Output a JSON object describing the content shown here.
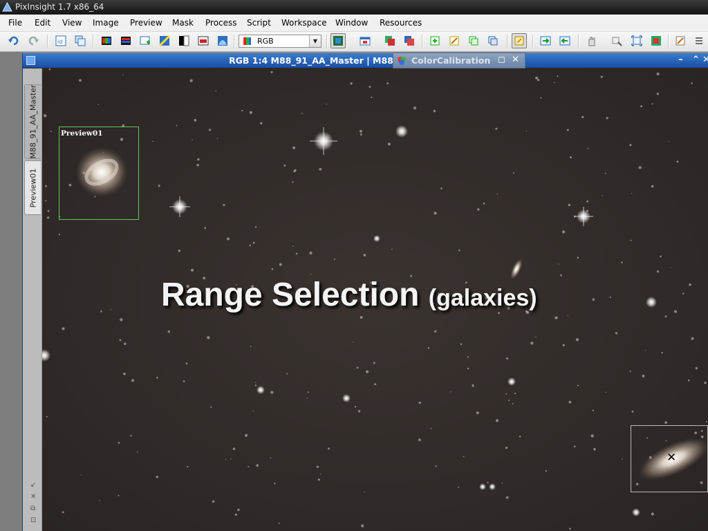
{
  "app": {
    "title": "PixInsight 1.7 x86_64"
  },
  "menu": [
    "File",
    "Edit",
    "View",
    "Image",
    "Preview",
    "Mask",
    "Process",
    "Script",
    "Workspace",
    "Window",
    "Resources"
  ],
  "toolbar": {
    "channel_select": "RGB"
  },
  "image_window": {
    "title": "RGB 1:4 M88_91_AA_Master | M88",
    "tabs": [
      "M88_91_AA_Master",
      "Preview01"
    ],
    "minimize": "–",
    "maximize": "⌃",
    "close": "✕"
  },
  "process_window": {
    "title": "ColorCalibration",
    "float_glyph": "◻",
    "close_glyph": "✕"
  },
  "canvas": {
    "preview_label": "Preview01",
    "overlay_main": "Range Selection",
    "overlay_sub": "(galaxies)"
  },
  "colors": {
    "accent": "#1a4fa2",
    "preview_border": "#5fc95f",
    "background": "#2c2725"
  }
}
